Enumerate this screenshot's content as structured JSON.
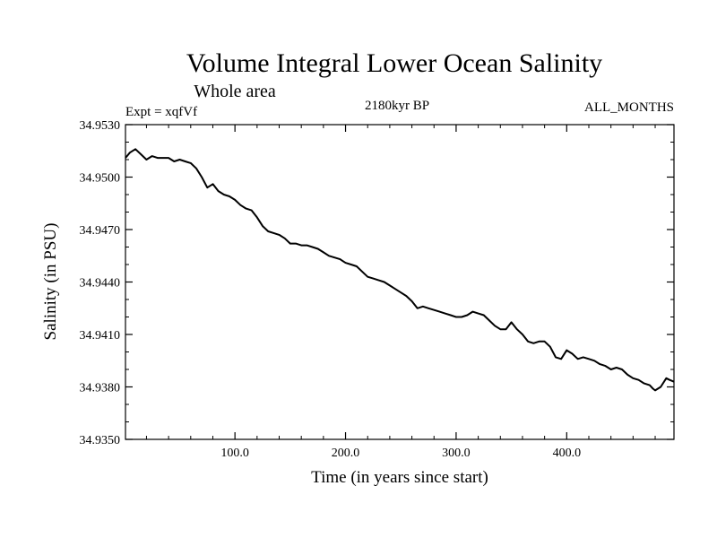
{
  "chart_data": {
    "type": "line",
    "title": "Volume Integral Lower Ocean Salinity",
    "subtitle": "Whole area",
    "experiment_label": "Expt = xqfVf",
    "period_label": "2180kyr BP",
    "months_label": "ALL_MONTHS",
    "xlabel": "Time (in years since start)",
    "ylabel": "Salinity (in PSU)",
    "xlim": [
      1,
      497
    ],
    "ylim": [
      34.935,
      34.953
    ],
    "xticks": [
      100,
      200,
      300,
      400
    ],
    "xtick_labels": [
      "100.0",
      "200.0",
      "300.0",
      "400.0"
    ],
    "yticks": [
      34.935,
      34.938,
      34.941,
      34.944,
      34.947,
      34.95,
      34.953
    ],
    "ytick_labels": [
      "34.9350",
      "34.9380",
      "34.9410",
      "34.9440",
      "34.9470",
      "34.9500",
      "34.9530"
    ],
    "grid": false,
    "series": [
      {
        "name": "Salinity",
        "color": "#000000",
        "x": [
          1,
          5,
          10,
          15,
          20,
          25,
          30,
          35,
          40,
          45,
          50,
          55,
          60,
          65,
          70,
          75,
          80,
          85,
          90,
          95,
          100,
          105,
          110,
          115,
          120,
          125,
          130,
          135,
          140,
          145,
          150,
          155,
          160,
          165,
          170,
          175,
          180,
          185,
          190,
          195,
          200,
          205,
          210,
          215,
          220,
          225,
          230,
          235,
          240,
          245,
          250,
          255,
          260,
          265,
          270,
          275,
          280,
          285,
          290,
          295,
          300,
          305,
          310,
          315,
          320,
          325,
          330,
          335,
          340,
          345,
          350,
          355,
          360,
          365,
          370,
          375,
          380,
          385,
          390,
          395,
          400,
          405,
          410,
          415,
          420,
          425,
          430,
          435,
          440,
          445,
          450,
          455,
          460,
          465,
          470,
          475,
          478,
          480,
          485,
          490,
          493,
          497
        ],
        "values": [
          34.9511,
          34.9514,
          34.9516,
          34.9513,
          34.951,
          34.9512,
          34.9511,
          34.9511,
          34.9511,
          34.9509,
          34.951,
          34.9509,
          34.9508,
          34.9505,
          34.95,
          34.9494,
          34.9496,
          34.9492,
          34.949,
          34.9489,
          34.9487,
          34.9484,
          34.9482,
          34.9481,
          34.9477,
          34.9472,
          34.9469,
          34.9468,
          34.9467,
          34.9465,
          34.9462,
          34.9462,
          34.9461,
          34.9461,
          34.946,
          34.9459,
          34.9457,
          34.9455,
          34.9454,
          34.9453,
          34.9451,
          34.945,
          34.9449,
          34.9446,
          34.9443,
          34.9442,
          34.9441,
          34.944,
          34.9438,
          34.9436,
          34.9434,
          34.9432,
          34.9429,
          34.9425,
          34.9426,
          34.9425,
          34.9424,
          34.9423,
          34.9422,
          34.9421,
          34.942,
          34.942,
          34.9421,
          34.9423,
          34.9422,
          34.9421,
          34.9418,
          34.9415,
          34.9413,
          34.9413,
          34.9417,
          34.9413,
          34.941,
          34.9406,
          34.9405,
          34.9406,
          34.9406,
          34.9403,
          34.9397,
          34.9396,
          34.9401,
          34.9399,
          34.9396,
          34.9397,
          34.9396,
          34.9395,
          34.9393,
          34.9392,
          34.939,
          34.9391,
          34.939,
          34.9387,
          34.9385,
          34.9384,
          34.9382,
          34.9381,
          34.9379,
          34.9378,
          34.938,
          34.9385,
          34.9384,
          34.9383
        ]
      }
    ]
  }
}
